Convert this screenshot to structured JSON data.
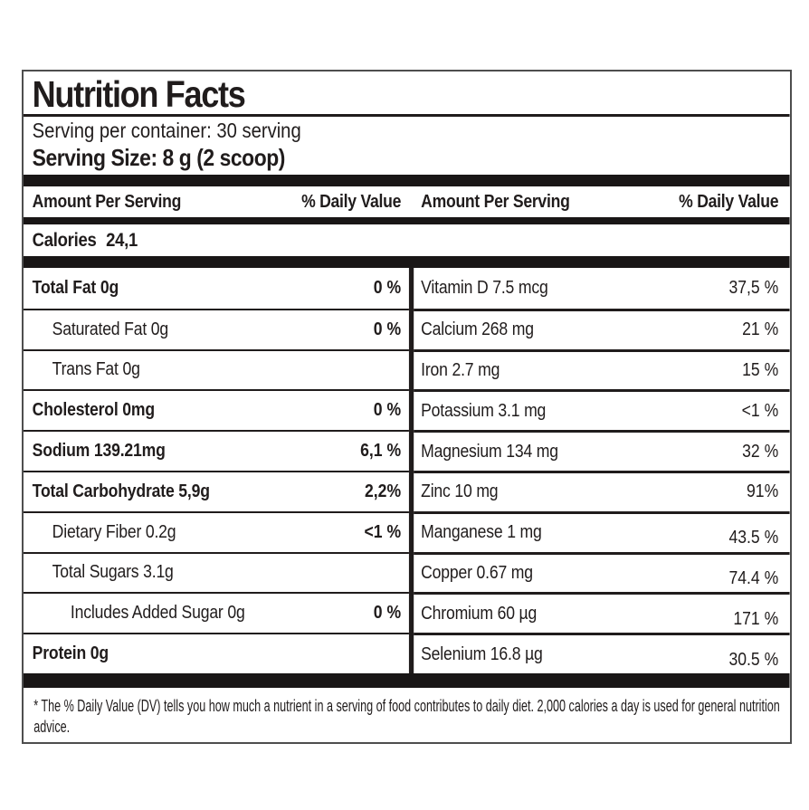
{
  "label": {
    "title": "Nutrition Facts",
    "serving_per_container": "Serving per container: 30 serving",
    "serving_size": "Serving Size: 8 g (2 scoop)",
    "column_headers": {
      "amount": "Amount Per Serving",
      "daily_value": "% Daily Value"
    },
    "calories": {
      "label": "Calories",
      "value": "24,1"
    },
    "left_rows": [
      {
        "name": "Total Fat 0g",
        "value": "0 %",
        "indent": 0,
        "bold": true
      },
      {
        "name": "Saturated Fat 0g",
        "value": "0 %",
        "indent": 1,
        "bold": false
      },
      {
        "name": "Trans Fat 0g",
        "value": "",
        "indent": 1,
        "bold": false
      },
      {
        "name": "Cholesterol 0mg",
        "value": "0 %",
        "indent": 0,
        "bold": true
      },
      {
        "name": "Sodium 139.21mg",
        "value": "6,1 %",
        "indent": 0,
        "bold": true
      },
      {
        "name": "Total Carbohydrate 5,9g",
        "value": "2,2%",
        "indent": 0,
        "bold": true
      },
      {
        "name": "Dietary Fiber 0.2g",
        "value": "<1 %",
        "indent": 1,
        "bold": false
      },
      {
        "name": "Total Sugars 3.1g",
        "value": "",
        "indent": 1,
        "bold": false
      },
      {
        "name": "Includes Added Sugar 0g",
        "value": "0 %",
        "indent": 2,
        "bold": false
      },
      {
        "name": "Protein 0g",
        "value": "",
        "indent": 0,
        "bold": true
      }
    ],
    "right_rows": [
      {
        "name": "Vitamin D 7.5 mcg",
        "value": "37,5 %",
        "indent": 0,
        "bold": false
      },
      {
        "name": "Calcium 268 mg",
        "value": "21 %",
        "indent": 0,
        "bold": false
      },
      {
        "name": "Iron 2.7 mg",
        "value": "15 %",
        "indent": 0,
        "bold": false
      },
      {
        "name": "Potassium 3.1 mg",
        "value": "<1 %",
        "indent": 0,
        "bold": false
      },
      {
        "name": "Magnesium 134 mg",
        "value": "32 %",
        "indent": 0,
        "bold": false
      },
      {
        "name": "Zinc 10 mg",
        "value": "91%",
        "indent": 0,
        "bold": false
      },
      {
        "name": "Manganese 1 mg",
        "value": "43.5 %",
        "indent": 0,
        "bold": false,
        "value_low": true
      },
      {
        "name": "Copper 0.67 mg",
        "value": "74.4 %",
        "indent": 0,
        "bold": false,
        "value_low": true
      },
      {
        "name": "Chromium 60 µg",
        "value": "171 %",
        "indent": 0,
        "bold": false,
        "value_low": true
      },
      {
        "name": "Selenium 16.8 µg",
        "value": "30.5 %",
        "indent": 0,
        "bold": false,
        "value_low": true
      }
    ],
    "footnote": "* The % Daily Value (DV) tells you how much a nutrient in a serving of food contributes to daily diet. 2,000 calories a day is used for general nutrition advice.",
    "colors": {
      "ink": "#201c1c",
      "bar": "#191616",
      "border": "#4e4e4e",
      "background": "#ffffff"
    }
  }
}
